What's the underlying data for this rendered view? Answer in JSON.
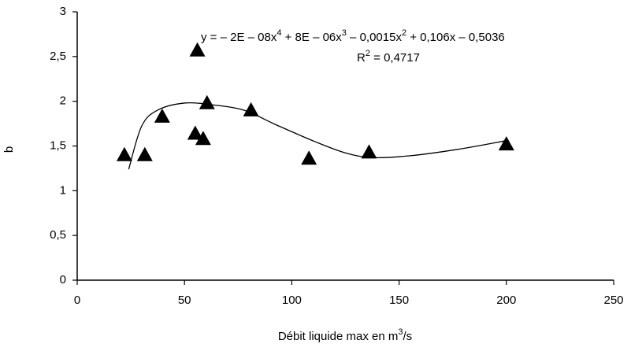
{
  "chart_data": {
    "type": "scatter",
    "x_label": [
      "Débit liquide max en  m",
      "3",
      "/s"
    ],
    "y_label": "b",
    "equation": [
      "y = – 2E – 08x",
      "4",
      " + 8E – 06x",
      "3",
      " – 0,0015x",
      "2",
      " + 0,106x – 0,5036"
    ],
    "r_squared": [
      "R",
      "2",
      " = 0,4717"
    ],
    "xlim": [
      0,
      250
    ],
    "xticks": [
      0,
      50,
      100,
      150,
      200,
      250
    ],
    "ylim": [
      0,
      3
    ],
    "yticks": [
      0,
      {
        "value": 0.5,
        "label": "0,5"
      },
      1,
      {
        "value": 1.5,
        "label": "1,5"
      },
      2,
      {
        "value": 2.5,
        "label": "2,5"
      },
      3
    ],
    "grid": false,
    "series": [
      {
        "type": "scatter",
        "marker": "triangle",
        "color": "#000000",
        "x": [
          22,
          31.5,
          39.6,
          56,
          55,
          58.7,
          60.5,
          81,
          108,
          136,
          200
        ],
        "values": [
          1.41,
          1.41,
          1.84,
          2.58,
          1.65,
          1.59,
          1.99,
          1.91,
          1.37,
          1.44,
          1.53
        ]
      },
      {
        "type": "line",
        "color": "#000000",
        "x": [
          24,
          30,
          37.4,
          50,
          63,
          77.7,
          92.4,
          110.7,
          125.4,
          138,
          154.7,
          176.7,
          200
        ],
        "values": [
          1.24,
          1.72,
          1.9,
          1.98,
          1.96,
          1.9,
          1.74,
          1.55,
          1.42,
          1.37,
          1.39,
          1.46,
          1.56
        ]
      }
    ]
  }
}
